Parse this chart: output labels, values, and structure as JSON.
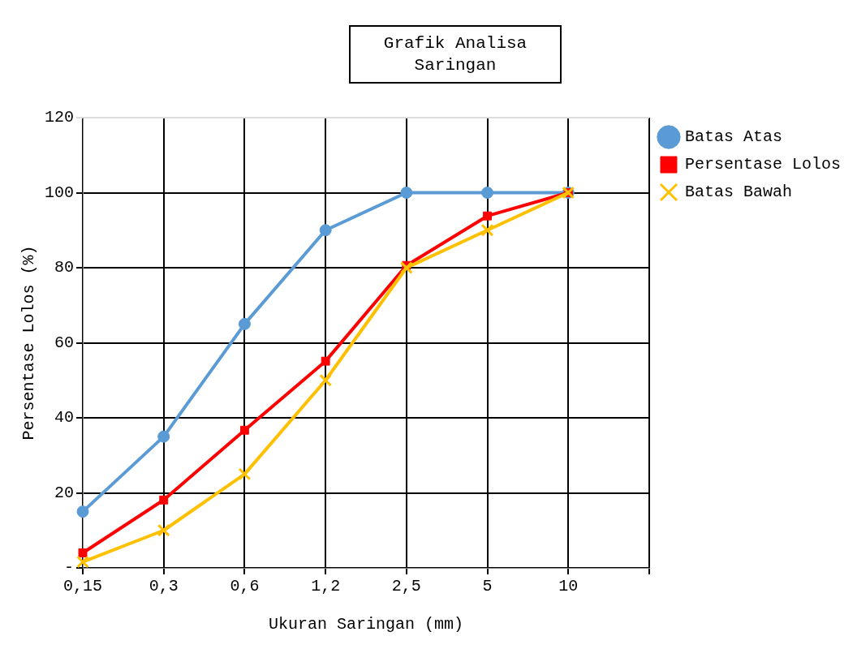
{
  "chart_data": {
    "type": "line",
    "title": "Grafik Analisa Saringan",
    "xlabel": "Ukuran Saringan (mm)",
    "ylabel": "Persentase Lolos (%)",
    "categories": [
      "0,15",
      "0,3",
      "0,6",
      "1,2",
      "2,5",
      "5",
      "10",
      null
    ],
    "series": [
      {
        "name": "Batas Atas",
        "color": "#5b9bd5",
        "marker": "circle",
        "values": [
          15,
          35,
          65,
          90,
          100,
          100,
          100,
          null
        ]
      },
      {
        "name": "Persentase Lolos",
        "color": "#ff0000",
        "marker": "square",
        "values": [
          4.0,
          18.1,
          36.7,
          55.1,
          80.6,
          93.8,
          100,
          null
        ]
      },
      {
        "name": "Batas Bawah",
        "color": "#ffc000",
        "marker": "cross",
        "values": [
          1.6,
          10,
          25,
          50,
          80,
          90,
          100,
          null
        ]
      }
    ],
    "ylim": [
      0,
      120
    ],
    "yticks": [
      {
        "value": 0,
        "label": "-"
      },
      20,
      40,
      60,
      80,
      100,
      120
    ],
    "grid": true,
    "legend": "right",
    "line_style": "solid"
  }
}
